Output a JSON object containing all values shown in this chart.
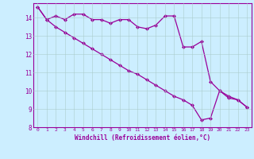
{
  "line1_x": [
    0,
    1,
    2,
    3,
    4,
    5,
    6,
    7,
    8,
    9,
    10,
    11,
    12,
    13,
    14,
    15,
    16,
    17,
    18,
    19,
    20,
    21,
    22,
    23
  ],
  "line1_y": [
    14.6,
    13.9,
    14.1,
    13.9,
    14.2,
    14.2,
    13.9,
    13.9,
    13.7,
    13.9,
    13.9,
    13.5,
    13.4,
    13.6,
    14.1,
    14.1,
    12.4,
    12.4,
    12.7,
    10.5,
    10.0,
    9.7,
    9.5,
    9.1
  ],
  "line2_x": [
    0,
    1,
    2,
    3,
    4,
    5,
    6,
    7,
    8,
    9,
    10,
    11,
    12,
    13,
    14,
    15,
    16,
    17,
    18,
    19,
    20,
    21,
    22,
    23
  ],
  "line2_y": [
    14.6,
    13.9,
    13.5,
    13.2,
    12.9,
    12.6,
    12.3,
    12.0,
    11.7,
    11.4,
    11.1,
    10.9,
    10.6,
    10.3,
    10.0,
    9.7,
    9.5,
    9.2,
    8.4,
    8.5,
    10.0,
    9.6,
    9.5,
    9.1
  ],
  "color": "#990099",
  "background_color": "#cceeff",
  "xlabel": "Windchill (Refroidissement éolien,°C)",
  "ylim": [
    8,
    14.8
  ],
  "xlim": [
    -0.5,
    23.5
  ],
  "yticks": [
    8,
    9,
    10,
    11,
    12,
    13,
    14
  ],
  "xticks": [
    0,
    1,
    2,
    3,
    4,
    5,
    6,
    7,
    8,
    9,
    10,
    11,
    12,
    13,
    14,
    15,
    16,
    17,
    18,
    19,
    20,
    21,
    22,
    23
  ],
  "grid_color": "#aacccc",
  "marker": "D",
  "markersize": 2.0,
  "linewidth": 0.9
}
